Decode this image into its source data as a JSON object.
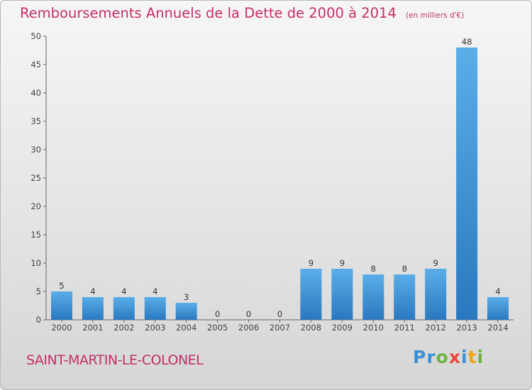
{
  "chart_data": {
    "type": "bar",
    "title": "Remboursements Annuels de la Dette de 2000 à 2014",
    "subtitle": "(en milliers d'€)",
    "categories": [
      "2000",
      "2001",
      "2002",
      "2003",
      "2004",
      "2005",
      "2006",
      "2007",
      "2008",
      "2009",
      "2010",
      "2011",
      "2012",
      "2013",
      "2014"
    ],
    "values": [
      5,
      4,
      4,
      4,
      3,
      0,
      0,
      0,
      9,
      9,
      8,
      8,
      9,
      48,
      4
    ],
    "data_labels": [
      "5",
      "4",
      "4",
      "4",
      "3",
      "0",
      "0",
      "0",
      "9",
      "9",
      "8",
      "8",
      "9",
      "48",
      "4"
    ],
    "ylim": [
      0,
      50
    ],
    "yticks": [
      0,
      5,
      10,
      15,
      20,
      25,
      30,
      35,
      40,
      45,
      50
    ],
    "xlabel": "",
    "ylabel": "",
    "grid": false,
    "bar_color": "#3d92d9"
  },
  "footer": {
    "commune": "SAINT-MARTIN-LE-COLONEL",
    "logo": {
      "p1": "Pr",
      "p2": "o",
      "p3": "x",
      "p4": "i",
      "p5": "t",
      "p6": "i"
    }
  }
}
